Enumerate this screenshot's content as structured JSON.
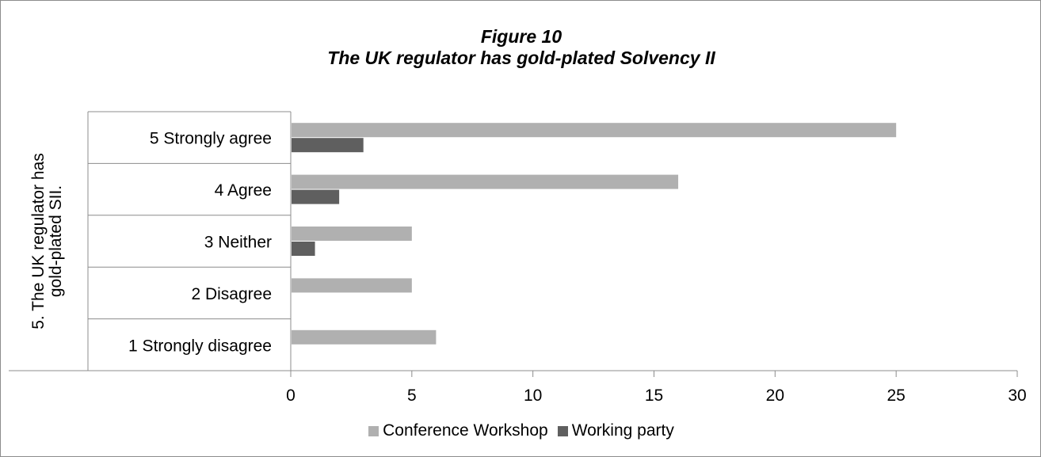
{
  "chart_data": {
    "type": "bar",
    "orientation": "horizontal",
    "title": "Figure 10",
    "subtitle": "The UK regulator has gold-plated Solvency II",
    "group_label": "5. The UK regulator has gold-plated SII.",
    "categories": [
      "5 Strongly agree",
      "4 Agree",
      "3 Neither",
      "2 Disagree",
      "1 Strongly disagree"
    ],
    "series": [
      {
        "name": "Conference Workshop",
        "color": "#b0b0b0",
        "values": [
          25,
          16,
          5,
          5,
          6
        ]
      },
      {
        "name": "Working party",
        "color": "#5f5f5f",
        "values": [
          3,
          2,
          1,
          0,
          0
        ]
      }
    ],
    "xlim": [
      0,
      30
    ],
    "xticks": [
      "0",
      "5",
      "10",
      "15",
      "20",
      "25",
      "30"
    ],
    "grid": false,
    "legend_position": "bottom"
  }
}
